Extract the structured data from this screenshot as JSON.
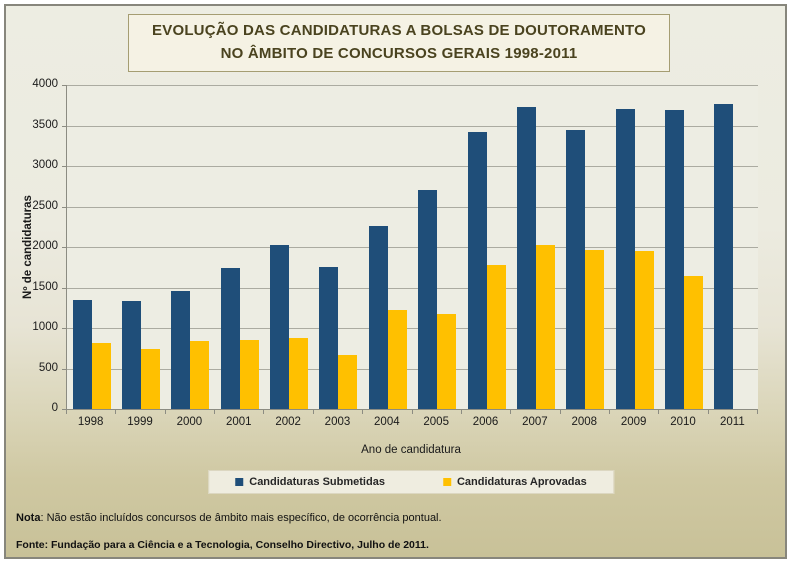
{
  "title": {
    "line1": "EVOLUÇÃO DAS CANDIDATURAS A BOLSAS DE DOUTORAMENTO",
    "line2": "NO ÂMBITO DE CONCURSOS GERAIS 1998-2011"
  },
  "chart_data": {
    "type": "bar",
    "title": "EVOLUÇÃO DAS CANDIDATURAS A BOLSAS DE DOUTORAMENTO NO ÂMBITO DE CONCURSOS GERAIS 1998-2011",
    "categories": [
      "1998",
      "1999",
      "2000",
      "2001",
      "2002",
      "2003",
      "2004",
      "2005",
      "2006",
      "2007",
      "2008",
      "2009",
      "2010",
      "2011"
    ],
    "series": [
      {
        "name": "Candidaturas Submetidas",
        "color": "#1F4E79",
        "values": [
          1350,
          1335,
          1460,
          1745,
          2030,
          1755,
          2260,
          2705,
          3420,
          3730,
          3440,
          3710,
          3690,
          3760
        ]
      },
      {
        "name": "Candidaturas Aprovadas",
        "color": "#FFC000",
        "values": [
          810,
          745,
          835,
          850,
          880,
          665,
          1220,
          1175,
          1780,
          2030,
          1960,
          1950,
          1640,
          null
        ]
      }
    ],
    "xlabel": "Ano de candidatura",
    "ylabel": "Nº de candidaturas",
    "ylim": [
      0,
      4000
    ],
    "ytick_step": 500,
    "grid": true,
    "legend_position": "bottom"
  },
  "notes": {
    "nota_label": "Nota",
    "nota_text": ": Não estão incluídos concursos de âmbito mais específico, de ocorrência pontual.",
    "fonte_label": "Fonte",
    "fonte_text": ": Fundação para a Ciência e a Tecnologia, Conselho Directivo, Julho de 2011."
  },
  "colors": {
    "submetidas": "#1F4E79",
    "aprovadas": "#FFC000",
    "plot_background": "#EDEDE3",
    "gridline": "#ABABA1",
    "frame_top": "#EDEDE2",
    "frame_bottom": "#C8C198",
    "title_text": "#4A431F"
  }
}
